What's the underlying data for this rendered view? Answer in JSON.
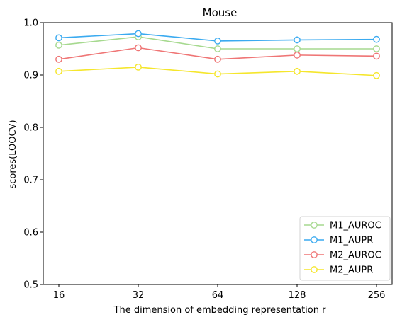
{
  "chart_data": {
    "type": "line",
    "title": "Mouse",
    "xlabel": "The dimension of embedding representation r",
    "ylabel": "scores(LOOCV)",
    "categories": [
      "16",
      "32",
      "64",
      "128",
      "256"
    ],
    "ylim": [
      0.5,
      1.0
    ],
    "yticks": [
      "0.5",
      "0.6",
      "0.7",
      "0.8",
      "0.9",
      "1.0"
    ],
    "grid": false,
    "legend_position": "lower-right",
    "series": [
      {
        "name": "M1_AUROC",
        "color": "#a6d98f",
        "values": [
          0.957,
          0.973,
          0.95,
          0.95,
          0.95
        ]
      },
      {
        "name": "M1_AUPR",
        "color": "#3aaaf0",
        "values": [
          0.971,
          0.979,
          0.965,
          0.967,
          0.968
        ]
      },
      {
        "name": "M2_AUROC",
        "color": "#ef7575",
        "values": [
          0.93,
          0.952,
          0.93,
          0.938,
          0.936
        ]
      },
      {
        "name": "M2_AUPR",
        "color": "#f5e62c",
        "values": [
          0.907,
          0.915,
          0.902,
          0.907,
          0.899
        ]
      }
    ]
  }
}
